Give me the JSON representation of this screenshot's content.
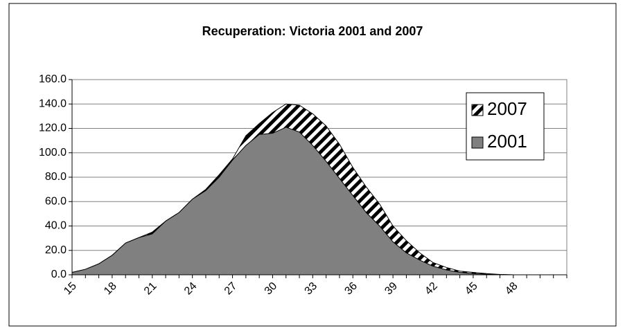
{
  "chart_data": {
    "type": "area",
    "title": "Recuperation: Victoria 2001 and 2007",
    "categories": [
      "15",
      null,
      null,
      "18",
      null,
      null,
      "21",
      null,
      null,
      "24",
      null,
      null,
      "27",
      null,
      null,
      "30",
      null,
      null,
      "33",
      null,
      null,
      "36",
      null,
      null,
      "39",
      null,
      null,
      "42",
      null,
      null,
      "45",
      null,
      null,
      "48",
      null,
      null,
      null,
      null
    ],
    "series": [
      {
        "name": "2007",
        "color": "#000000",
        "fill": "hatch",
        "values": [
          2,
          4.5,
          9,
          16,
          26,
          30.5,
          35,
          44,
          51,
          62,
          70,
          82,
          95,
          114,
          124,
          133,
          140,
          139,
          132,
          122,
          107,
          88,
          72,
          58,
          40,
          28,
          18,
          10,
          6,
          3,
          2,
          1,
          0.3,
          0,
          0,
          0,
          0,
          0
        ]
      },
      {
        "name": "2001",
        "color": "#808080",
        "fill": "solid",
        "values": [
          1.9,
          4.5,
          9,
          16,
          26,
          30.5,
          33.5,
          44,
          51,
          62,
          69,
          80,
          94,
          106,
          115,
          116,
          121,
          117,
          106,
          93,
          79,
          65,
          51,
          40,
          27,
          18,
          12,
          7,
          4,
          2,
          1,
          0.5,
          0.2,
          0,
          0,
          0,
          0,
          0
        ]
      }
    ],
    "ylim": [
      0,
      160
    ],
    "yticks": [
      {
        "value": 0,
        "label": "0.0"
      },
      {
        "value": 20,
        "label": "20.0"
      },
      {
        "value": 40,
        "label": "40.0"
      },
      {
        "value": 60,
        "label": "60.0"
      },
      {
        "value": 80,
        "label": "80.0"
      },
      {
        "value": 100,
        "label": "100.0"
      },
      {
        "value": 120,
        "label": "120.0"
      },
      {
        "value": 140,
        "label": "140.0"
      },
      {
        "value": 160,
        "label": "160.0"
      }
    ],
    "grid": true,
    "legend": "right"
  }
}
